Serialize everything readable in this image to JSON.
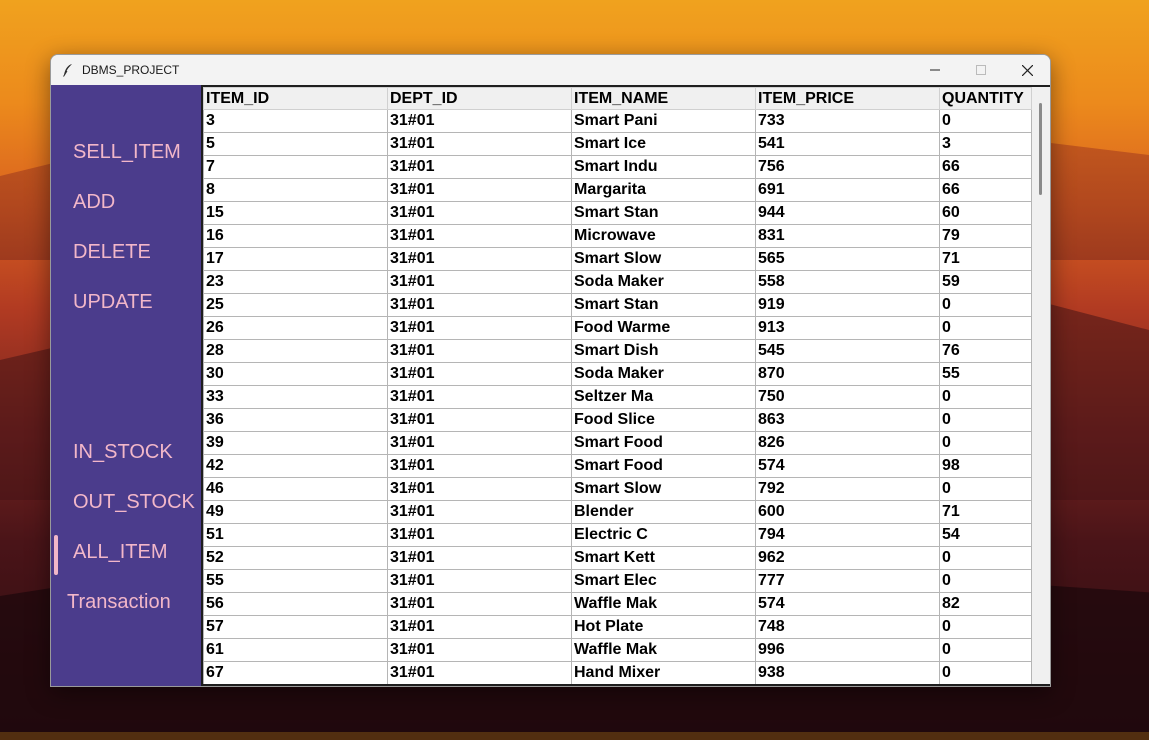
{
  "window": {
    "title": "DBMS_PROJECT"
  },
  "sidebar": {
    "items": [
      {
        "label": "SELL_ITEM",
        "active": false
      },
      {
        "label": "ADD",
        "active": false
      },
      {
        "label": "DELETE",
        "active": false
      },
      {
        "label": "UPDATE",
        "active": false
      },
      {
        "label": "IN_STOCK",
        "active": false
      },
      {
        "label": "OUT_STOCK",
        "active": false
      },
      {
        "label": "ALL_ITEM",
        "active": true
      },
      {
        "label": "Transaction",
        "active": false
      }
    ]
  },
  "table": {
    "columns": [
      "ITEM_ID",
      "DEPT_ID",
      "ITEM_NAME",
      "ITEM_PRICE",
      "QUANTITY"
    ],
    "rows": [
      [
        "3",
        "31#01",
        "Smart Pani",
        "733",
        "0"
      ],
      [
        "5",
        "31#01",
        "Smart Ice",
        "541",
        "3"
      ],
      [
        "7",
        "31#01",
        "Smart Indu",
        "756",
        "66"
      ],
      [
        "8",
        "31#01",
        "Margarita",
        "691",
        "66"
      ],
      [
        "15",
        "31#01",
        "Smart Stan",
        "944",
        "60"
      ],
      [
        "16",
        "31#01",
        "Microwave",
        "831",
        "79"
      ],
      [
        "17",
        "31#01",
        "Smart Slow",
        "565",
        "71"
      ],
      [
        "23",
        "31#01",
        "Soda Maker",
        "558",
        "59"
      ],
      [
        "25",
        "31#01",
        "Smart Stan",
        "919",
        "0"
      ],
      [
        "26",
        "31#01",
        "Food Warme",
        "913",
        "0"
      ],
      [
        "28",
        "31#01",
        "Smart Dish",
        "545",
        "76"
      ],
      [
        "30",
        "31#01",
        "Soda Maker",
        "870",
        "55"
      ],
      [
        "33",
        "31#01",
        "Seltzer Ma",
        "750",
        "0"
      ],
      [
        "36",
        "31#01",
        "Food Slice",
        "863",
        "0"
      ],
      [
        "39",
        "31#01",
        "Smart Food",
        "826",
        "0"
      ],
      [
        "42",
        "31#01",
        "Smart Food",
        "574",
        "98"
      ],
      [
        "46",
        "31#01",
        "Smart Slow",
        "792",
        "0"
      ],
      [
        "49",
        "31#01",
        "Blender",
        "600",
        "71"
      ],
      [
        "51",
        "31#01",
        "Electric C",
        "794",
        "54"
      ],
      [
        "52",
        "31#01",
        "Smart Kett",
        "962",
        "0"
      ],
      [
        "55",
        "31#01",
        "Smart Elec",
        "777",
        "0"
      ],
      [
        "56",
        "31#01",
        "Waffle Mak",
        "574",
        "82"
      ],
      [
        "57",
        "31#01",
        "Hot Plate",
        "748",
        "0"
      ],
      [
        "61",
        "31#01",
        "Waffle Mak",
        "996",
        "0"
      ],
      [
        "67",
        "31#01",
        "Hand Mixer",
        "938",
        "0"
      ]
    ]
  },
  "icons": {
    "app": "feather-icon",
    "minimize": "minimize-icon",
    "maximize": "maximize-icon",
    "close": "close-icon"
  },
  "colors": {
    "sidebar_bg": "#4b3c8c",
    "sidebar_text": "#f2b7c9"
  }
}
